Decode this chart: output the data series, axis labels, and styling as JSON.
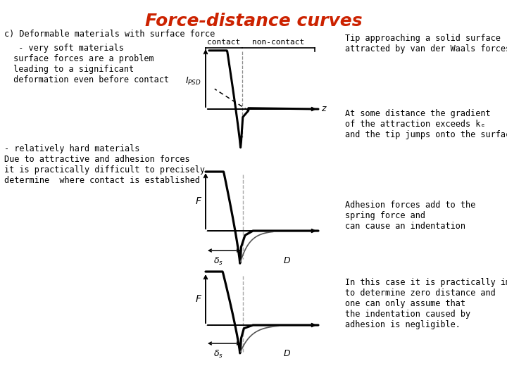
{
  "title": "Force-distance curves",
  "title_color": "#cc2200",
  "title_fontsize": 18,
  "bg_color": "#ffffff",
  "text_color": "#000000",
  "left_text_1": "c) Deformable materials with surface force",
  "left_text_2": "  - very soft materials\n surface forces are a problem\n leading to a significant\n deformation even before contact",
  "left_text_3": "- relatively hard materials\nDue to attractive and adhesion forces\nit is practically difficult to precisely\ndetermine  where contact is established",
  "right_text_1": "Tip approaching a solid surface\nattracted by van der Waals forces",
  "right_text_2": "At some distance the gradient\nof the attraction exceeds kₑ\nand the tip jumps onto the surface.",
  "right_text_3": "Adhesion forces add to the\nspring force and\ncan cause an indentation",
  "right_text_4": "In this case it is practically impossible\nto determine zero distance and\none can only assume that\nthe indentation caused by\nadhesion is negligible.",
  "contact_label": "contact",
  "noncontact_label": "non-contact",
  "z_label": "z",
  "f_label1": "F",
  "f_label2": "F",
  "delta_label1": "δₛ",
  "d_label1": "D",
  "delta_label2": "δₛ",
  "d_label2": "D"
}
